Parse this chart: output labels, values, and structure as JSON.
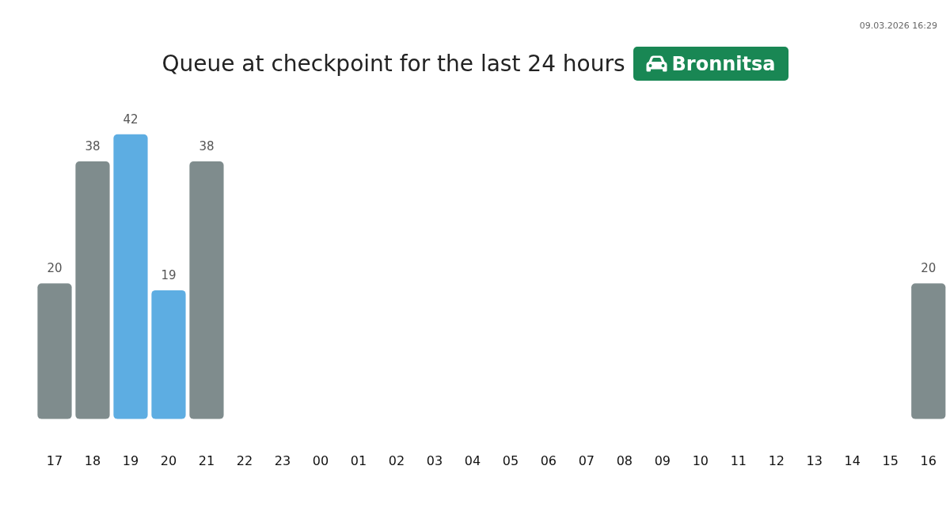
{
  "chart_data": {
    "type": "bar",
    "title": "Queue at checkpoint for the last 24 hours",
    "subtitle": "Bronnitsa",
    "annotations": [
      "09.03.2026 16:29"
    ],
    "categories": [
      "17",
      "18",
      "19",
      "20",
      "21",
      "22",
      "23",
      "00",
      "01",
      "02",
      "03",
      "04",
      "05",
      "06",
      "07",
      "08",
      "09",
      "10",
      "11",
      "12",
      "13",
      "14",
      "15",
      "16"
    ],
    "values": [
      20,
      38,
      42,
      19,
      38,
      null,
      null,
      null,
      null,
      null,
      null,
      null,
      null,
      null,
      null,
      null,
      null,
      null,
      null,
      null,
      null,
      null,
      null,
      20
    ],
    "colors": [
      "#7f8c8d",
      "#7f8c8d",
      "#5dade2",
      "#5dade2",
      "#7f8c8d",
      "#7f8c8d",
      "#7f8c8d",
      "#7f8c8d",
      "#7f8c8d",
      "#7f8c8d",
      "#7f8c8d",
      "#7f8c8d",
      "#7f8c8d",
      "#7f8c8d",
      "#7f8c8d",
      "#7f8c8d",
      "#7f8c8d",
      "#7f8c8d",
      "#7f8c8d",
      "#7f8c8d",
      "#7f8c8d",
      "#7f8c8d",
      "#7f8c8d",
      "#7f8c8d"
    ],
    "data_labels": true,
    "grid": false,
    "legend": false
  }
}
